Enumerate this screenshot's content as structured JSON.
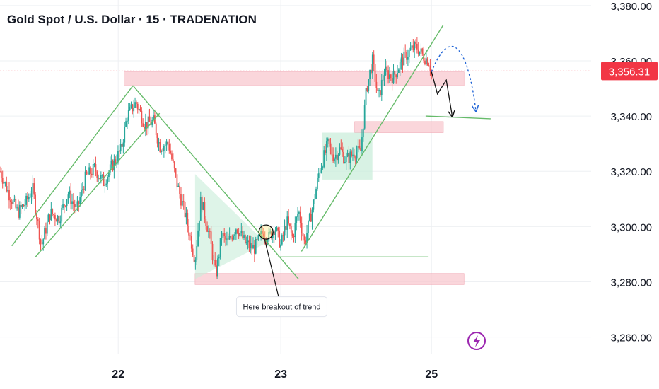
{
  "header": {
    "title": "Gold Spot / U.S. Dollar · 15 · TRADENATION"
  },
  "colors": {
    "up": "#26a69a",
    "down": "#ef5350",
    "trend": "#66bb6a",
    "zone": "#f8c8cf",
    "current": "#f23645",
    "projection": "#1e63d6",
    "grid": "#eef0f3",
    "icon": "#9c27b0"
  },
  "chart_data": {
    "type": "candlestick",
    "title": "Gold Spot / U.S. Dollar · 15 · TRADENATION",
    "ylim": [
      3254,
      3382
    ],
    "y_ticks": [
      3380,
      3360,
      3340,
      3320,
      3300,
      3280,
      3260
    ],
    "y_tick_labels": [
      "3,380.00",
      "3,360.00",
      "3,340.00",
      "3,320.00",
      "3,300.00",
      "3,280.00",
      "3,260.00"
    ],
    "x_range": [
      0,
      100
    ],
    "x_ticks": [
      {
        "x": 20,
        "label": "22"
      },
      {
        "x": 47.5,
        "label": "23"
      },
      {
        "x": 73,
        "label": "25"
      }
    ],
    "current_price": {
      "value": 3356.31,
      "label": "3,356.31"
    },
    "anchors": [
      [
        0,
        3320
      ],
      [
        1.5,
        3312
      ],
      [
        3,
        3305
      ],
      [
        4.5,
        3309
      ],
      [
        5.5,
        3314
      ],
      [
        7,
        3293
      ],
      [
        8.5,
        3305
      ],
      [
        10,
        3303
      ],
      [
        11.5,
        3312
      ],
      [
        13,
        3306
      ],
      [
        14.5,
        3318
      ],
      [
        16,
        3321
      ],
      [
        17.5,
        3316
      ],
      [
        19,
        3322
      ],
      [
        20.5,
        3328
      ],
      [
        21.5,
        3340
      ],
      [
        23,
        3345
      ],
      [
        24.5,
        3337
      ],
      [
        26,
        3338
      ],
      [
        27,
        3329
      ],
      [
        28.5,
        3330
      ],
      [
        30,
        3315
      ],
      [
        31.5,
        3303
      ],
      [
        33,
        3288
      ],
      [
        34,
        3310
      ],
      [
        35.5,
        3296
      ],
      [
        36.5,
        3282
      ],
      [
        37.5,
        3297
      ],
      [
        38.5,
        3294
      ],
      [
        40,
        3300
      ],
      [
        41.5,
        3294
      ],
      [
        43,
        3292
      ],
      [
        44.5,
        3298
      ],
      [
        45.5,
        3296
      ],
      [
        46.5,
        3300
      ],
      [
        47.5,
        3293
      ],
      [
        48.5,
        3302
      ],
      [
        49.5,
        3296
      ],
      [
        50.5,
        3306
      ],
      [
        51.5,
        3294
      ],
      [
        53,
        3308
      ],
      [
        54,
        3320
      ],
      [
        55.5,
        3330
      ],
      [
        56.5,
        3325
      ],
      [
        57.5,
        3328
      ],
      [
        58.5,
        3324
      ],
      [
        60,
        3327
      ],
      [
        61,
        3327
      ],
      [
        62,
        3350
      ],
      [
        63,
        3360
      ],
      [
        64,
        3346
      ],
      [
        65,
        3356
      ],
      [
        66.5,
        3354
      ],
      [
        68,
        3360
      ],
      [
        69.5,
        3364
      ],
      [
        70.5,
        3365
      ],
      [
        71.5,
        3362
      ],
      [
        72.5,
        3360
      ],
      [
        73,
        3356
      ]
    ],
    "trendlines": [
      {
        "name": "ascending-channel-upper",
        "points": [
          [
            2,
            3293
          ],
          [
            22.5,
            3351
          ]
        ]
      },
      {
        "name": "ascending-channel-lower",
        "points": [
          [
            6,
            3289
          ],
          [
            27,
            3341
          ]
        ]
      },
      {
        "name": "descending-trendline",
        "points": [
          [
            22.5,
            3351
          ],
          [
            50.5,
            3281
          ]
        ]
      },
      {
        "name": "rally-trendline",
        "points": [
          [
            51,
            3291
          ],
          [
            75,
            3373
          ]
        ]
      },
      {
        "name": "support-line",
        "points": [
          [
            47,
            3289
          ],
          [
            72.5,
            3289
          ]
        ]
      },
      {
        "name": "target-line",
        "points": [
          [
            72,
            3340
          ],
          [
            83,
            3339
          ]
        ]
      }
    ],
    "zones": [
      {
        "name": "resistance-zone",
        "x": [
          21,
          78.5
        ],
        "y": [
          3356,
          3351
        ]
      },
      {
        "name": "support-zone-1",
        "x": [
          60,
          75
        ],
        "y": [
          3338,
          3334
        ]
      },
      {
        "name": "support-zone-2",
        "x": [
          33,
          78.5
        ],
        "y": [
          3283,
          3279
        ]
      }
    ],
    "boxes": [
      {
        "name": "triangle-pattern",
        "type": "triangle",
        "points": [
          [
            33,
            3319
          ],
          [
            33,
            3281
          ],
          [
            45,
            3294
          ]
        ]
      },
      {
        "name": "consolidation-box",
        "x": [
          54.5,
          63
        ],
        "y": [
          3334,
          3317
        ]
      }
    ],
    "annotations": [
      {
        "text": "Here breakout of trend",
        "x": 43,
        "y": 3271,
        "target": [
          45,
          3298
        ]
      }
    ],
    "projection_solid": [
      [
        73,
        3356
      ],
      [
        74,
        3348
      ],
      [
        75.5,
        3353
      ],
      [
        76.5,
        3340
      ]
    ],
    "projection_dashed": [
      [
        73,
        3356
      ],
      [
        76,
        3364
      ],
      [
        79,
        3361
      ],
      [
        80.5,
        3342
      ]
    ]
  }
}
